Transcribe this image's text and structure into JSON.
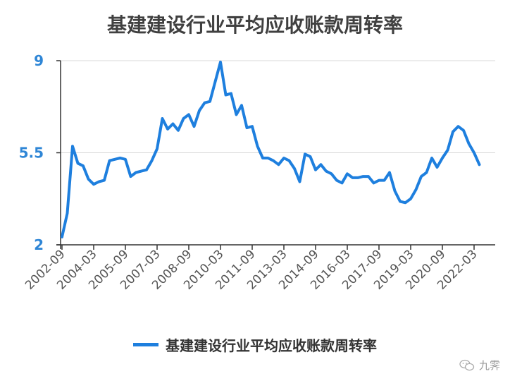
{
  "chart_data": {
    "type": "line",
    "title": "基建建设行业平均应收账款周转率",
    "xlabel": "",
    "ylabel": "",
    "ylim": [
      2,
      9
    ],
    "yticks": [
      "2",
      "5.5",
      "9"
    ],
    "xticks": [
      "2002-09",
      "2004-03",
      "2005-09",
      "2007-03",
      "2008-09",
      "2010-03",
      "2011-09",
      "2013-03",
      "2014-09",
      "2016-03",
      "2017-09",
      "2019-03",
      "2020-09",
      "2022-03"
    ],
    "grid": true,
    "legend_position": "bottom",
    "series": [
      {
        "name": "基建建设行业平均应收账款周转率",
        "color": "#1e7fde",
        "values": [
          2.3,
          3.2,
          5.75,
          5.1,
          5.0,
          4.5,
          4.3,
          4.4,
          4.45,
          5.2,
          5.25,
          5.3,
          5.25,
          4.6,
          4.75,
          4.8,
          4.85,
          5.2,
          5.65,
          6.8,
          6.4,
          6.6,
          6.35,
          6.8,
          6.95,
          6.5,
          7.1,
          7.4,
          7.45,
          8.2,
          8.95,
          7.7,
          7.75,
          6.95,
          7.3,
          6.45,
          6.5,
          5.75,
          5.3,
          5.3,
          5.2,
          5.05,
          5.3,
          5.2,
          4.9,
          4.4,
          5.45,
          5.35,
          4.85,
          5.05,
          4.8,
          4.7,
          4.45,
          4.35,
          4.7,
          4.55,
          4.55,
          4.6,
          4.6,
          4.35,
          4.45,
          4.45,
          4.75,
          4.05,
          3.65,
          3.6,
          3.75,
          4.1,
          4.6,
          4.75,
          5.3,
          4.95,
          5.3,
          5.6,
          6.3,
          6.5,
          6.35,
          5.85,
          5.5,
          5.05
        ]
      }
    ]
  },
  "watermark": {
    "icon": "wechat-icon",
    "text": "九霁"
  }
}
